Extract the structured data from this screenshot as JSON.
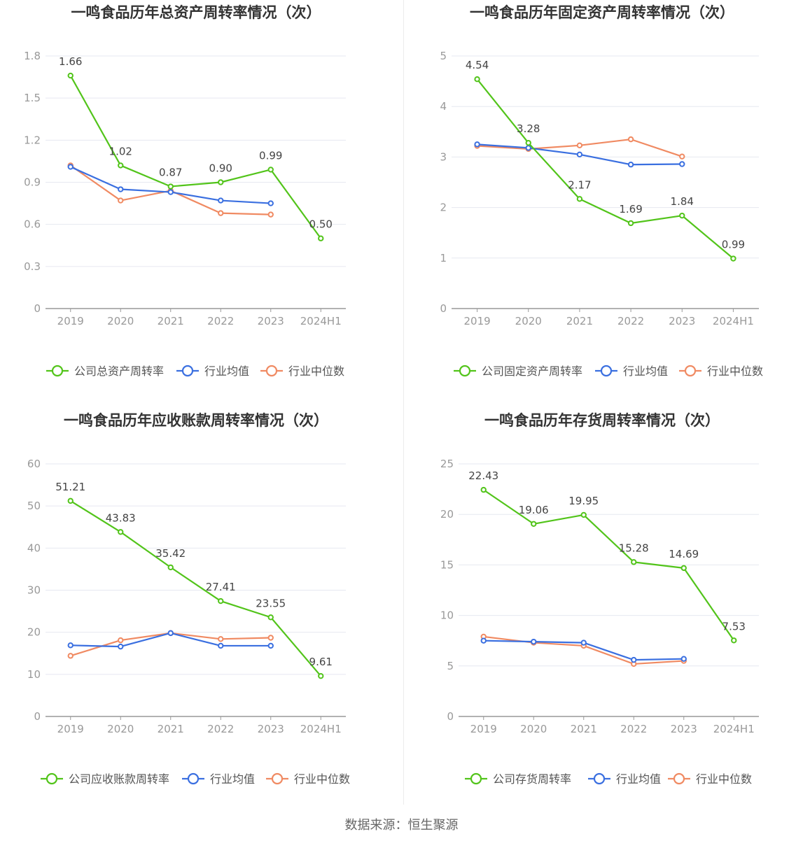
{
  "source_text": "数据来源：恒生聚源",
  "legend_common": {
    "industry_avg": "行业均值",
    "industry_median": "行业中位数"
  },
  "colors": {
    "company": "#52c41a",
    "industry_avg": "#3a6fe0",
    "industry_median": "#f08a62",
    "grid": "#e6e8f0",
    "axis": "#999999"
  },
  "chart_data": [
    {
      "type": "line",
      "title": "一鸣食品历年总资产周转率情况（次）",
      "categories": [
        "2019",
        "2020",
        "2021",
        "2022",
        "2023",
        "2024H1"
      ],
      "yticks": [
        "0",
        "0.3",
        "0.6",
        "0.9",
        "1.2",
        "1.5",
        "1.8"
      ],
      "ylim": [
        0,
        1.8
      ],
      "series": [
        {
          "name": "公司总资产周转率",
          "values": [
            1.66,
            1.02,
            0.87,
            0.9,
            0.99,
            0.5
          ],
          "labels": [
            "1.66",
            "1.02",
            "0.87",
            "0.90",
            "0.99",
            "0.50"
          ]
        },
        {
          "name": "行业均值",
          "values": [
            1.01,
            0.85,
            0.83,
            0.77,
            0.75,
            null
          ]
        },
        {
          "name": "行业中位数",
          "values": [
            1.02,
            0.77,
            0.84,
            0.68,
            0.67,
            null
          ]
        }
      ]
    },
    {
      "type": "line",
      "title": "一鸣食品历年固定资产周转率情况（次）",
      "categories": [
        "2019",
        "2020",
        "2021",
        "2022",
        "2023",
        "2024H1"
      ],
      "yticks": [
        "0",
        "1",
        "2",
        "3",
        "4",
        "5"
      ],
      "ylim": [
        0,
        5
      ],
      "series": [
        {
          "name": "公司固定资产周转率",
          "values": [
            4.54,
            3.28,
            2.17,
            1.69,
            1.84,
            0.99
          ],
          "labels": [
            "4.54",
            "3.28",
            "2.17",
            "1.69",
            "1.84",
            "0.99"
          ]
        },
        {
          "name": "行业均值",
          "values": [
            3.25,
            3.18,
            3.05,
            2.85,
            2.86,
            null
          ]
        },
        {
          "name": "行业中位数",
          "values": [
            3.22,
            3.16,
            3.23,
            3.35,
            3.01,
            null
          ]
        }
      ]
    },
    {
      "type": "line",
      "title": "一鸣食品历年应收账款周转率情况（次）",
      "categories": [
        "2019",
        "2020",
        "2021",
        "2022",
        "2023",
        "2024H1"
      ],
      "yticks": [
        "0",
        "10",
        "20",
        "30",
        "40",
        "50",
        "60"
      ],
      "ylim": [
        0,
        60
      ],
      "series": [
        {
          "name": "公司应收账款周转率",
          "values": [
            51.21,
            43.83,
            35.42,
            27.41,
            23.55,
            9.61
          ],
          "labels": [
            "51.21",
            "43.83",
            "35.42",
            "27.41",
            "23.55",
            "9.61"
          ]
        },
        {
          "name": "行业均值",
          "values": [
            16.9,
            16.6,
            19.8,
            16.8,
            16.8,
            null
          ]
        },
        {
          "name": "行业中位数",
          "values": [
            14.4,
            18.1,
            19.8,
            18.4,
            18.7,
            null
          ]
        }
      ]
    },
    {
      "type": "line",
      "title": "一鸣食品历年存货周转率情况（次）",
      "categories": [
        "2019",
        "2020",
        "2021",
        "2022",
        "2023",
        "2024H1"
      ],
      "yticks": [
        "0",
        "5",
        "10",
        "15",
        "20",
        "25"
      ],
      "ylim": [
        0,
        25
      ],
      "series": [
        {
          "name": "公司存货周转率",
          "values": [
            22.43,
            19.06,
            19.95,
            15.28,
            14.69,
            7.53
          ],
          "labels": [
            "22.43",
            "19.06",
            "19.95",
            "15.28",
            "14.69",
            "7.53"
          ]
        },
        {
          "name": "行业均值",
          "values": [
            7.5,
            7.4,
            7.3,
            5.6,
            5.7,
            null
          ]
        },
        {
          "name": "行业中位数",
          "values": [
            7.9,
            7.3,
            7.0,
            5.2,
            5.5,
            null
          ]
        }
      ]
    }
  ]
}
